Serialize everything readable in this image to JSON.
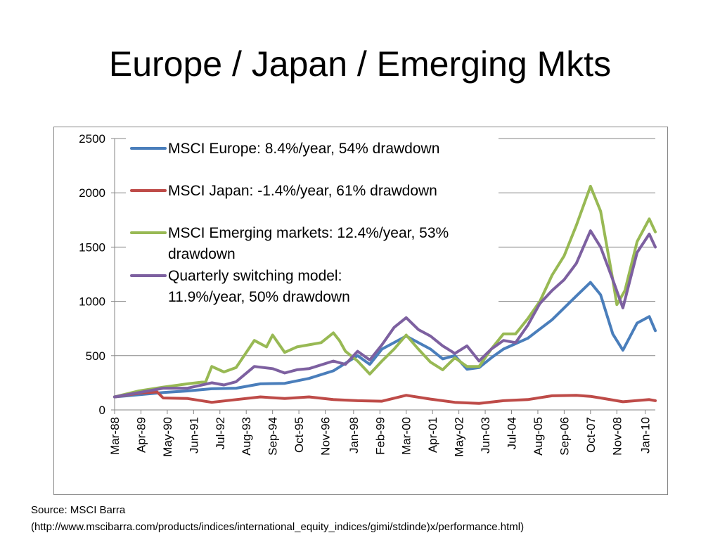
{
  "slide": {
    "title": "Europe / Japan / Emerging Mkts"
  },
  "source": {
    "line1": "Source: MSCI Barra",
    "line2": "(http://www.mscibarra.com/products/indices/international_equity_indices/gimi/stdinde)x/performance.html)"
  },
  "chart_data": {
    "type": "line",
    "title": "",
    "xlabel": "",
    "ylabel": "",
    "ylim": [
      0,
      2500
    ],
    "yticks": [
      0,
      500,
      1000,
      1500,
      2000,
      2500
    ],
    "ytick_labels": [
      "0",
      "500",
      "1000",
      "1500",
      "2000",
      "2500"
    ],
    "x_start": "Mar-88",
    "x_end": "Jun-10",
    "xtick_labels": [
      "Mar-88",
      "Apr-89",
      "May-90",
      "Jun-91",
      "Jul-92",
      "Aug-93",
      "Sep-94",
      "Oct-95",
      "Nov-96",
      "Jan-98",
      "Feb-99",
      "Mar-00",
      "Apr-01",
      "May-02",
      "Jun-03",
      "Jul-04",
      "Aug-05",
      "Sep-06",
      "Oct-07",
      "Nov-08",
      "Jan-10"
    ],
    "grid": "horizontal",
    "legend": "top-left",
    "series": [
      {
        "name": "MSCI Europe: 8.4%/year, 54% drawdown",
        "color": "#4a7ebb",
        "points": [
          [
            "Mar-88",
            120
          ],
          [
            "Mar-89",
            140
          ],
          [
            "Mar-90",
            160
          ],
          [
            "Mar-91",
            175
          ],
          [
            "Mar-92",
            195
          ],
          [
            "Mar-93",
            200
          ],
          [
            "Mar-94",
            240
          ],
          [
            "Mar-95",
            245
          ],
          [
            "Mar-96",
            290
          ],
          [
            "Mar-97",
            360
          ],
          [
            "Mar-98",
            500
          ],
          [
            "Sep-98",
            420
          ],
          [
            "Mar-99",
            560
          ],
          [
            "Mar-00",
            680
          ],
          [
            "Mar-01",
            560
          ],
          [
            "Sep-01",
            470
          ],
          [
            "Mar-02",
            500
          ],
          [
            "Sep-02",
            375
          ],
          [
            "Mar-03",
            390
          ],
          [
            "Sep-03",
            480
          ],
          [
            "Mar-04",
            560
          ],
          [
            "Mar-05",
            660
          ],
          [
            "Mar-06",
            830
          ],
          [
            "Mar-07",
            1050
          ],
          [
            "Oct-07",
            1175
          ],
          [
            "Mar-08",
            1060
          ],
          [
            "Sep-08",
            700
          ],
          [
            "Feb-09",
            550
          ],
          [
            "Sep-09",
            800
          ],
          [
            "Mar-10",
            860
          ],
          [
            "Jun-10",
            730
          ]
        ]
      },
      {
        "name": "MSCI Japan: -1.4%/year, 61% drawdown",
        "color": "#be4b48",
        "points": [
          [
            "Mar-88",
            120
          ],
          [
            "Mar-89",
            155
          ],
          [
            "Dec-89",
            165
          ],
          [
            "Mar-90",
            110
          ],
          [
            "Mar-91",
            105
          ],
          [
            "Mar-92",
            70
          ],
          [
            "Mar-93",
            95
          ],
          [
            "Mar-94",
            120
          ],
          [
            "Mar-95",
            105
          ],
          [
            "Mar-96",
            120
          ],
          [
            "Mar-97",
            95
          ],
          [
            "Mar-98",
            85
          ],
          [
            "Mar-99",
            80
          ],
          [
            "Mar-00",
            135
          ],
          [
            "Mar-01",
            100
          ],
          [
            "Mar-02",
            70
          ],
          [
            "Mar-03",
            60
          ],
          [
            "Mar-04",
            85
          ],
          [
            "Mar-05",
            95
          ],
          [
            "Mar-06",
            130
          ],
          [
            "Mar-07",
            135
          ],
          [
            "Oct-07",
            125
          ],
          [
            "Mar-08",
            110
          ],
          [
            "Feb-09",
            75
          ],
          [
            "Mar-10",
            95
          ],
          [
            "Jun-10",
            85
          ]
        ]
      },
      {
        "name": "MSCI Emerging markets: 12.4%/year, 53% drawdown",
        "color": "#98b954",
        "points": [
          [
            "Mar-88",
            120
          ],
          [
            "Mar-89",
            175
          ],
          [
            "Mar-90",
            210
          ],
          [
            "Mar-91",
            240
          ],
          [
            "Dec-91",
            260
          ],
          [
            "Mar-92",
            400
          ],
          [
            "Sep-92",
            350
          ],
          [
            "Mar-93",
            390
          ],
          [
            "Dec-93",
            640
          ],
          [
            "Jun-94",
            580
          ],
          [
            "Sep-94",
            690
          ],
          [
            "Mar-95",
            530
          ],
          [
            "Sep-95",
            580
          ],
          [
            "Mar-96",
            600
          ],
          [
            "Sep-96",
            620
          ],
          [
            "Mar-97",
            710
          ],
          [
            "Jun-97",
            640
          ],
          [
            "Sep-97",
            540
          ],
          [
            "Mar-98",
            450
          ],
          [
            "Sep-98",
            330
          ],
          [
            "Mar-99",
            450
          ],
          [
            "Sep-99",
            560
          ],
          [
            "Mar-00",
            690
          ],
          [
            "Sep-00",
            560
          ],
          [
            "Mar-01",
            440
          ],
          [
            "Sep-01",
            370
          ],
          [
            "Mar-02",
            480
          ],
          [
            "Sep-02",
            400
          ],
          [
            "Mar-03",
            400
          ],
          [
            "Sep-03",
            560
          ],
          [
            "Mar-04",
            700
          ],
          [
            "Sep-04",
            700
          ],
          [
            "Mar-05",
            840
          ],
          [
            "Sep-05",
            1000
          ],
          [
            "Mar-06",
            1240
          ],
          [
            "Sep-06",
            1420
          ],
          [
            "Mar-07",
            1700
          ],
          [
            "Oct-07",
            2060
          ],
          [
            "Mar-08",
            1830
          ],
          [
            "Sep-08",
            1200
          ],
          [
            "Nov-08",
            970
          ],
          [
            "Mar-09",
            1100
          ],
          [
            "Sep-09",
            1550
          ],
          [
            "Mar-10",
            1760
          ],
          [
            "Jun-10",
            1640
          ]
        ]
      },
      {
        "name": "Quarterly switching model: 11.9%/year, 50% drawdown",
        "color": "#7d60a0",
        "points": [
          [
            "Mar-88",
            120
          ],
          [
            "Mar-89",
            160
          ],
          [
            "Mar-90",
            200
          ],
          [
            "Mar-91",
            200
          ],
          [
            "Mar-92",
            250
          ],
          [
            "Sep-92",
            230
          ],
          [
            "Mar-93",
            260
          ],
          [
            "Dec-93",
            400
          ],
          [
            "Sep-94",
            380
          ],
          [
            "Mar-95",
            340
          ],
          [
            "Sep-95",
            370
          ],
          [
            "Mar-96",
            380
          ],
          [
            "Mar-97",
            450
          ],
          [
            "Sep-97",
            420
          ],
          [
            "Mar-98",
            540
          ],
          [
            "Sep-98",
            460
          ],
          [
            "Mar-99",
            600
          ],
          [
            "Sep-99",
            760
          ],
          [
            "Mar-00",
            850
          ],
          [
            "Sep-00",
            740
          ],
          [
            "Mar-01",
            680
          ],
          [
            "Sep-01",
            590
          ],
          [
            "Mar-02",
            520
          ],
          [
            "Sep-02",
            590
          ],
          [
            "Mar-03",
            450
          ],
          [
            "Sep-03",
            560
          ],
          [
            "Mar-04",
            640
          ],
          [
            "Sep-04",
            620
          ],
          [
            "Mar-05",
            780
          ],
          [
            "Sep-05",
            980
          ],
          [
            "Mar-06",
            1100
          ],
          [
            "Sep-06",
            1200
          ],
          [
            "Mar-07",
            1350
          ],
          [
            "Oct-07",
            1650
          ],
          [
            "Mar-08",
            1500
          ],
          [
            "Sep-08",
            1200
          ],
          [
            "Feb-09",
            940
          ],
          [
            "Sep-09",
            1450
          ],
          [
            "Mar-10",
            1620
          ],
          [
            "Jun-10",
            1500
          ]
        ]
      }
    ]
  }
}
